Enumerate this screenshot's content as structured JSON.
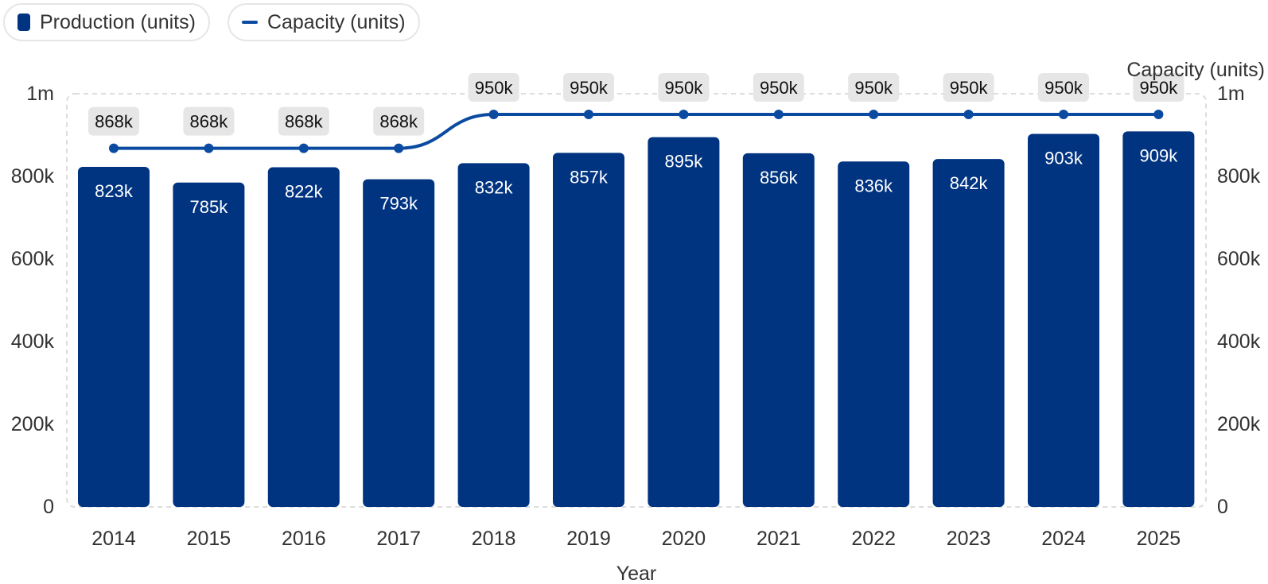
{
  "legend": {
    "items": [
      {
        "label": "Production (units)",
        "color": "#003380",
        "kind": "bar"
      },
      {
        "label": "Capacity (units)",
        "color": "#0a4aa0",
        "kind": "line"
      }
    ]
  },
  "chart_data": {
    "type": "bar",
    "categories": [
      "2014",
      "2015",
      "2016",
      "2017",
      "2018",
      "2019",
      "2020",
      "2021",
      "2022",
      "2023",
      "2024",
      "2025"
    ],
    "series": [
      {
        "name": "Production (units)",
        "type": "bar",
        "color": "#003380",
        "values": [
          823000,
          785000,
          822000,
          793000,
          832000,
          857000,
          895000,
          856000,
          836000,
          842000,
          903000,
          909000
        ],
        "labels": [
          "823k",
          "785k",
          "822k",
          "793k",
          "832k",
          "857k",
          "895k",
          "856k",
          "836k",
          "842k",
          "903k",
          "909k"
        ]
      },
      {
        "name": "Capacity (units)",
        "type": "line",
        "color": "#0a4aa0",
        "values": [
          868000,
          868000,
          868000,
          868000,
          950000,
          950000,
          950000,
          950000,
          950000,
          950000,
          950000,
          950000
        ],
        "labels": [
          "868k",
          "868k",
          "868k",
          "868k",
          "950k",
          "950k",
          "950k",
          "950k",
          "950k",
          "950k",
          "950k",
          "950k"
        ]
      }
    ],
    "xlabel": "Year",
    "ylabel_right": "Capacity (units)",
    "ylim": [
      0,
      1000000
    ],
    "yticks": [
      0,
      200000,
      400000,
      600000,
      800000,
      1000000
    ],
    "ytick_labels": [
      "0",
      "200k",
      "400k",
      "600k",
      "800k",
      "1m"
    ],
    "grid": false,
    "legend_position": "top-left"
  }
}
